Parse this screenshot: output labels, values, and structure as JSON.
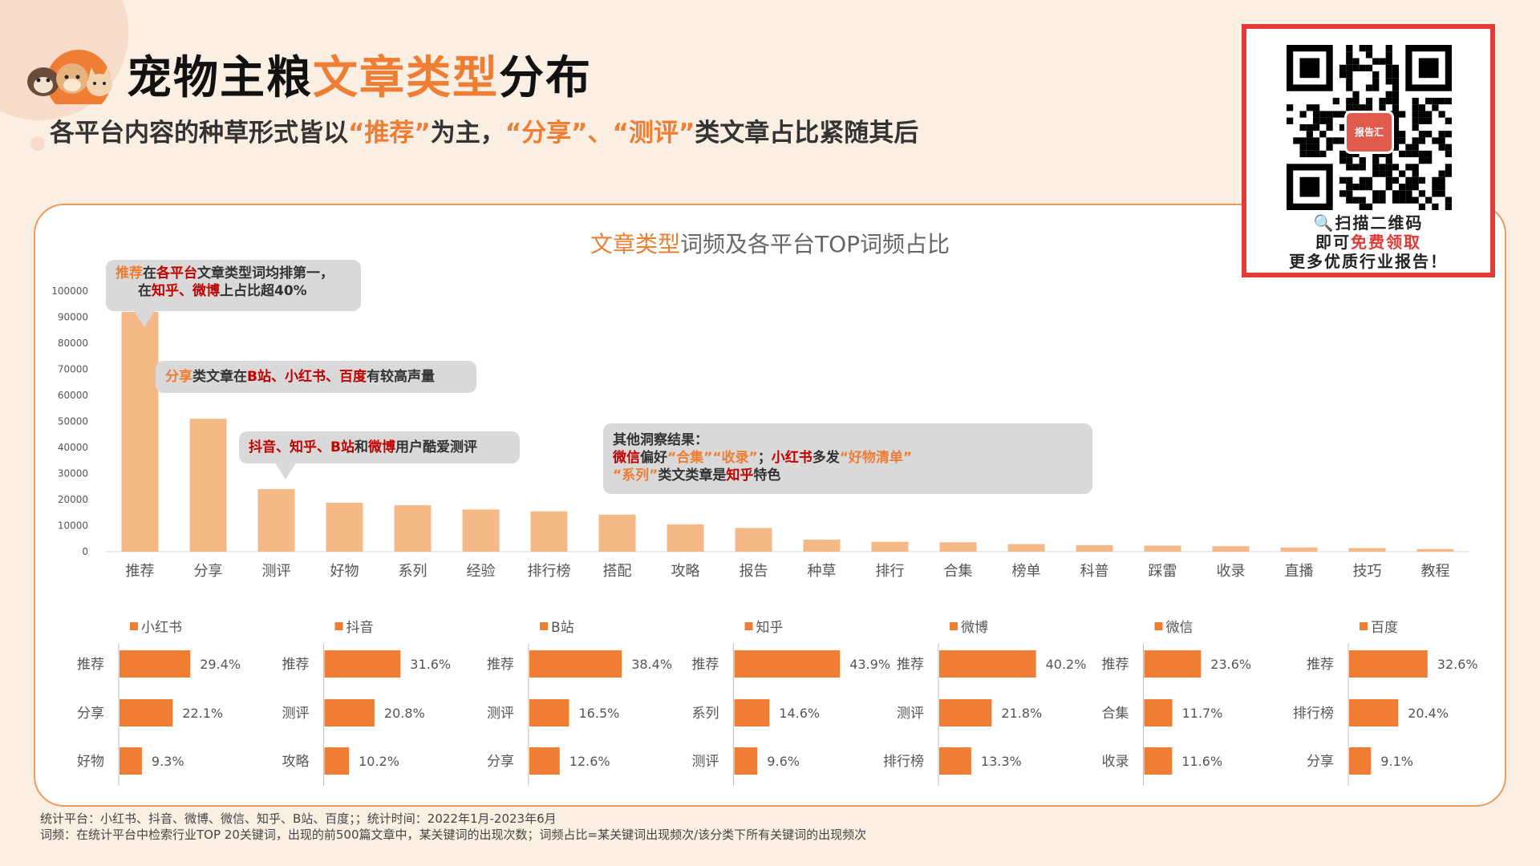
{
  "title": {
    "prefix": "宠物主粮",
    "accent": "文章类型",
    "suffix": "分布"
  },
  "subtitle": {
    "p1": "各平台内容的种草形式皆以",
    "a1": "“推荐”",
    "p2": "为主，",
    "a2": "“分享”、“测评”",
    "p3": "类文章占比紧随其后"
  },
  "chart_title": {
    "accent": "文章类型",
    "rest": "词频及各平台TOP词频占比"
  },
  "qr": {
    "badge": "报告汇",
    "line1": "🔍扫描二维码",
    "line2_pre": "即可",
    "line2_red": "免费领取",
    "line3": "更多优质行业报告！"
  },
  "callouts": {
    "c1": {
      "a": "推荐",
      "b": "在",
      "c": "各平台",
      "d": "文章类型词均排第一，",
      "e": "在",
      "f": "知乎、微博",
      "g": "上占比超40%"
    },
    "c2": {
      "a": "分享",
      "b": "类文章在",
      "c": "B站、小红书、百度",
      "d": "有较高声量"
    },
    "c3": {
      "a": "抖音、知乎、B站",
      "b": "和",
      "c": "微博",
      "d": "用户酷爱测评"
    },
    "c4": {
      "head": "其他洞察结果：",
      "a": "微信",
      "b": "偏好",
      "c": "“合集”“收录”",
      "d": "；",
      "e": "小红书",
      "f": "多发",
      "g": "“好物清单”",
      "h": "“系列”",
      "i": "类文类章是",
      "j": "知乎",
      "k": "特色"
    }
  },
  "colors": {
    "bar_main": "#f5b887",
    "bar_platform": "#ef7d33",
    "accent": "#ef7d33",
    "red": "#c00000"
  },
  "footnotes": {
    "line1": "统计平台：小红书、抖音、微博、微信、知乎、B站、百度；；统计时间：2022年1月-2023年6月",
    "line2": "词频：在统计平台中检索行业TOP 20关键词，出现的前500篇文章中，某关键词的出现次数；词频占比=某关键词出现频次/该分类下所有关键词的出现频次"
  },
  "chart_data": [
    {
      "type": "bar",
      "title": "文章类型词频及各平台TOP词频占比",
      "categories": [
        "推荐",
        "分享",
        "测评",
        "好物",
        "系列",
        "经验",
        "排行榜",
        "搭配",
        "攻略",
        "报告",
        "种草",
        "排行",
        "合集",
        "榜单",
        "科普",
        "踩雷",
        "收录",
        "直播",
        "技巧",
        "教程"
      ],
      "values": [
        92000,
        51000,
        24000,
        18800,
        17800,
        16200,
        15500,
        14200,
        10500,
        9100,
        4600,
        3800,
        3600,
        2900,
        2500,
        2300,
        2100,
        1600,
        1400,
        1000
      ],
      "ylim": [
        0,
        100000
      ],
      "yticks": [
        0,
        10000,
        20000,
        30000,
        40000,
        50000,
        60000,
        70000,
        80000,
        90000,
        100000
      ],
      "grid": false
    },
    {
      "type": "bar",
      "orientation": "horizontal",
      "platforms": [
        {
          "name": "小红书",
          "categories": [
            "推荐",
            "分享",
            "好物"
          ],
          "values": [
            29.4,
            22.1,
            9.3
          ],
          "labels": [
            "29.4%",
            "22.1%",
            "9.3%"
          ]
        },
        {
          "name": "抖音",
          "categories": [
            "推荐",
            "测评",
            "攻略"
          ],
          "values": [
            31.6,
            20.8,
            10.2
          ],
          "labels": [
            "31.6%",
            "20.8%",
            "10.2%"
          ]
        },
        {
          "name": "B站",
          "categories": [
            "推荐",
            "测评",
            "分享"
          ],
          "values": [
            38.4,
            16.5,
            12.6
          ],
          "labels": [
            "38.4%",
            "16.5%",
            "12.6%"
          ]
        },
        {
          "name": "知乎",
          "categories": [
            "推荐",
            "系列",
            "测评"
          ],
          "values": [
            43.9,
            14.6,
            9.6
          ],
          "labels": [
            "43.9%",
            "14.6%",
            "9.6%"
          ]
        },
        {
          "name": "微博",
          "categories": [
            "推荐",
            "测评",
            "排行榜"
          ],
          "values": [
            40.2,
            21.8,
            13.3
          ],
          "labels": [
            "40.2%",
            "21.8%",
            "13.3%"
          ]
        },
        {
          "name": "微信",
          "categories": [
            "推荐",
            "合集",
            "收录"
          ],
          "values": [
            23.6,
            11.7,
            11.6
          ],
          "labels": [
            "23.6%",
            "11.7%",
            "11.6%"
          ]
        },
        {
          "name": "百度",
          "categories": [
            "推荐",
            "排行榜",
            "分享"
          ],
          "values": [
            32.6,
            20.4,
            9.1
          ],
          "labels": [
            "32.6%",
            "20.4%",
            "9.1%"
          ]
        }
      ],
      "legend": "top"
    }
  ]
}
